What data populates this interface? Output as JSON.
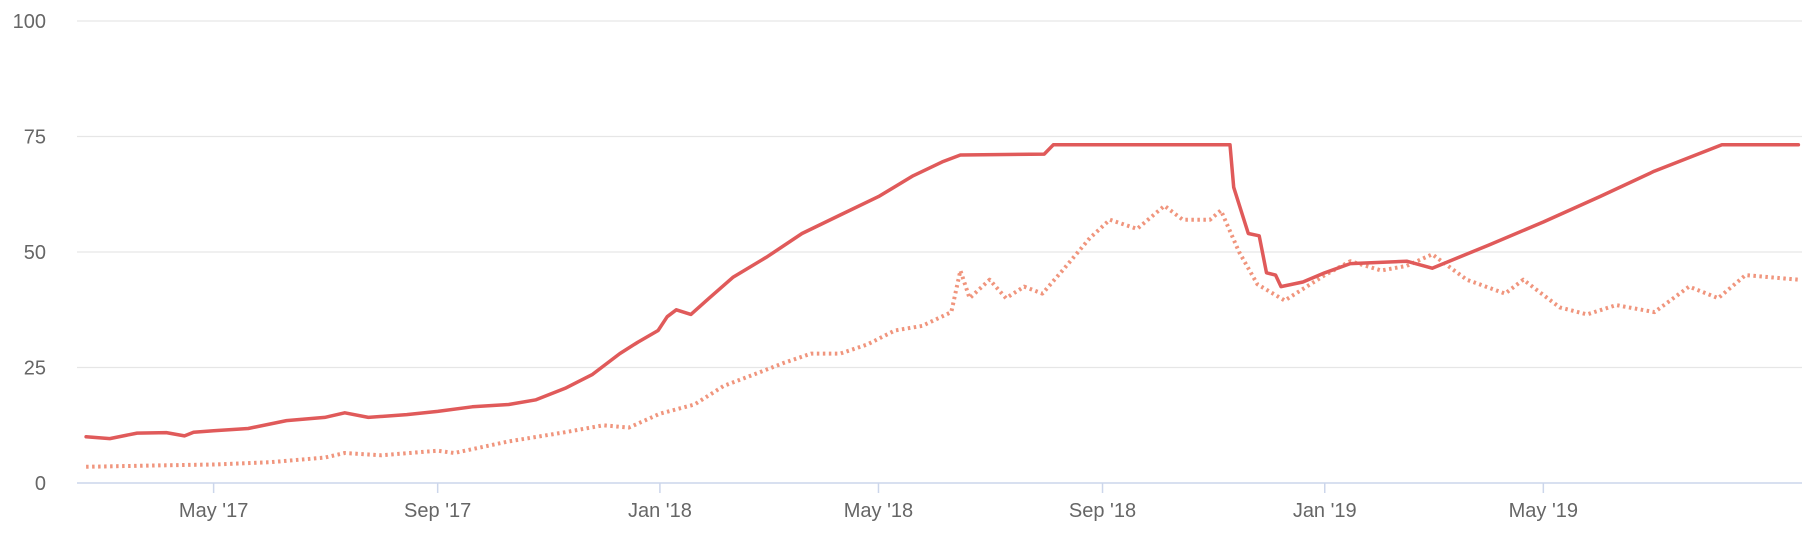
{
  "chart_data": {
    "type": "line",
    "title": "",
    "xlabel": "",
    "ylabel": "",
    "ylim": [
      0,
      100
    ],
    "xlim": [
      "2017-02-15",
      "2019-09-20"
    ],
    "y_ticks": [
      "0",
      "25",
      "50",
      "75",
      "100"
    ],
    "x_ticks": [
      {
        "date": "2017-05-01",
        "label": "May '17"
      },
      {
        "date": "2017-09-01",
        "label": "Sep '17"
      },
      {
        "date": "2018-01-01",
        "label": "Jan '18"
      },
      {
        "date": "2018-05-01",
        "label": "May '18"
      },
      {
        "date": "2018-09-01",
        "label": "Sep '18"
      },
      {
        "date": "2019-01-01",
        "label": "Jan '19"
      },
      {
        "date": "2019-05-01",
        "label": "May '19"
      }
    ],
    "grid": true,
    "legend": "none",
    "series": [
      {
        "style": "solid",
        "color": "#e05a5a",
        "points": [
          [
            "2017-02-20",
            10
          ],
          [
            "2017-03-05",
            9.6
          ],
          [
            "2017-03-20",
            10.8
          ],
          [
            "2017-04-05",
            10.9
          ],
          [
            "2017-04-15",
            10.2
          ],
          [
            "2017-04-20",
            11
          ],
          [
            "2017-05-01",
            11.3
          ],
          [
            "2017-05-20",
            11.8
          ],
          [
            "2017-06-10",
            13.5
          ],
          [
            "2017-07-01",
            14.2
          ],
          [
            "2017-07-12",
            15.2
          ],
          [
            "2017-07-25",
            14.2
          ],
          [
            "2017-08-15",
            14.8
          ],
          [
            "2017-09-01",
            15.5
          ],
          [
            "2017-09-20",
            16.5
          ],
          [
            "2017-10-10",
            17
          ],
          [
            "2017-10-25",
            18
          ],
          [
            "2017-11-10",
            20.5
          ],
          [
            "2017-11-25",
            23.5
          ],
          [
            "2017-12-10",
            28
          ],
          [
            "2017-12-20",
            30.5
          ],
          [
            "2017-12-31",
            33
          ],
          [
            "2018-01-05",
            36
          ],
          [
            "2018-01-10",
            37.5
          ],
          [
            "2018-01-18",
            36.5
          ],
          [
            "2018-01-28",
            40
          ],
          [
            "2018-02-10",
            44.5
          ],
          [
            "2018-03-01",
            49
          ],
          [
            "2018-03-20",
            54
          ],
          [
            "2018-04-10",
            58
          ],
          [
            "2018-05-01",
            62
          ],
          [
            "2018-05-20",
            66.5
          ],
          [
            "2018-06-05",
            69.5
          ],
          [
            "2018-06-15",
            71
          ],
          [
            "2018-07-31",
            71.2
          ],
          [
            "2018-08-05",
            73.2
          ],
          [
            "2018-11-10",
            73.2
          ],
          [
            "2018-11-12",
            64
          ],
          [
            "2018-11-20",
            54
          ],
          [
            "2018-11-26",
            53.5
          ],
          [
            "2018-11-30",
            45.5
          ],
          [
            "2018-12-05",
            45
          ],
          [
            "2018-12-08",
            42.5
          ],
          [
            "2018-12-20",
            43.5
          ],
          [
            "2019-01-01",
            45.5
          ],
          [
            "2019-01-15",
            47.5
          ],
          [
            "2019-02-15",
            48
          ],
          [
            "2019-03-01",
            46.5
          ],
          [
            "2019-04-01",
            51.5
          ],
          [
            "2019-05-01",
            56.5
          ],
          [
            "2019-06-01",
            62
          ],
          [
            "2019-07-01",
            67.5
          ],
          [
            "2019-08-07",
            73.2
          ],
          [
            "2019-09-18",
            73.2
          ]
        ]
      },
      {
        "style": "dotted",
        "color": "#f0957d",
        "points": [
          [
            "2017-02-20",
            3.5
          ],
          [
            "2017-04-01",
            3.8
          ],
          [
            "2017-05-01",
            4
          ],
          [
            "2017-06-01",
            4.5
          ],
          [
            "2017-07-01",
            5.5
          ],
          [
            "2017-07-12",
            6.5
          ],
          [
            "2017-08-01",
            6
          ],
          [
            "2017-09-01",
            7
          ],
          [
            "2017-09-10",
            6.5
          ],
          [
            "2017-10-10",
            9
          ],
          [
            "2017-11-10",
            11
          ],
          [
            "2017-12-01",
            12.5
          ],
          [
            "2017-12-15",
            12
          ],
          [
            "2018-01-01",
            15
          ],
          [
            "2018-01-20",
            17
          ],
          [
            "2018-02-05",
            21
          ],
          [
            "2018-02-25",
            24
          ],
          [
            "2018-03-10",
            26
          ],
          [
            "2018-03-25",
            28
          ],
          [
            "2018-04-10",
            28
          ],
          [
            "2018-04-25",
            30
          ],
          [
            "2018-05-10",
            33
          ],
          [
            "2018-05-25",
            34
          ],
          [
            "2018-06-10",
            37
          ],
          [
            "2018-06-15",
            46
          ],
          [
            "2018-06-20",
            40
          ],
          [
            "2018-07-01",
            44
          ],
          [
            "2018-07-10",
            40
          ],
          [
            "2018-07-20",
            42.5
          ],
          [
            "2018-07-30",
            41
          ],
          [
            "2018-08-10",
            46
          ],
          [
            "2018-08-25",
            53
          ],
          [
            "2018-09-05",
            57
          ],
          [
            "2018-09-20",
            55
          ],
          [
            "2018-10-05",
            60
          ],
          [
            "2018-10-15",
            57
          ],
          [
            "2018-10-30",
            57
          ],
          [
            "2018-11-05",
            59
          ],
          [
            "2018-11-15",
            50
          ],
          [
            "2018-11-25",
            43
          ],
          [
            "2018-12-10",
            39.5
          ],
          [
            "2018-12-20",
            42
          ],
          [
            "2019-01-01",
            45
          ],
          [
            "2019-01-15",
            48
          ],
          [
            "2019-02-01",
            46
          ],
          [
            "2019-02-15",
            47
          ],
          [
            "2019-03-01",
            49.5
          ],
          [
            "2019-03-20",
            44
          ],
          [
            "2019-04-10",
            41
          ],
          [
            "2019-04-20",
            44
          ],
          [
            "2019-05-10",
            38
          ],
          [
            "2019-05-25",
            36.5
          ],
          [
            "2019-06-10",
            38.5
          ],
          [
            "2019-07-01",
            37
          ],
          [
            "2019-07-20",
            42.5
          ],
          [
            "2019-08-05",
            40
          ],
          [
            "2019-08-20",
            45
          ],
          [
            "2019-09-18",
            44
          ]
        ]
      }
    ]
  }
}
